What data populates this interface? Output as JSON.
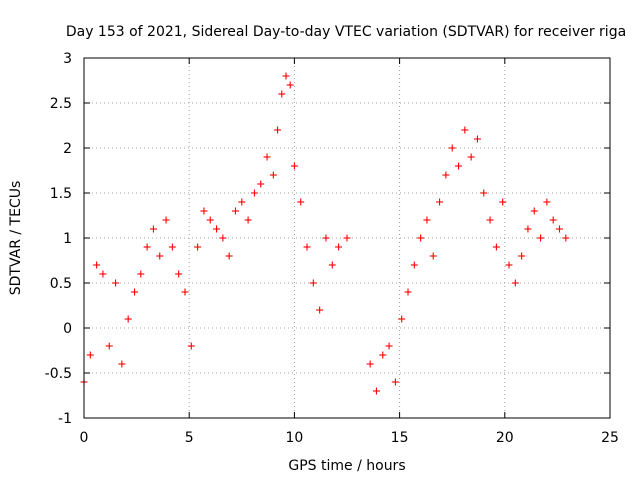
{
  "chart_data": {
    "type": "scatter",
    "title": "Day 153 of 2021, Sidereal Day-to-day VTEC variation (SDTVAR) for receiver riga",
    "xlabel": "GPS time / hours",
    "ylabel": "SDTVAR / TECUs",
    "xlim": [
      0,
      25
    ],
    "ylim": [
      -1,
      3
    ],
    "xticks": [
      "0",
      "5",
      "10",
      "15",
      "20",
      "25"
    ],
    "yticks": [
      "-1",
      "-0.5",
      "0",
      "0.5",
      "1",
      "1.5",
      "2",
      "2.5",
      "3"
    ],
    "grid": true,
    "marker": "+",
    "color": "#ff0000",
    "series": [
      {
        "name": "SDTVAR",
        "x": [
          0.0,
          0.3,
          0.6,
          0.9,
          1.2,
          1.5,
          1.8,
          2.1,
          2.4,
          2.7,
          3.0,
          3.3,
          3.6,
          3.9,
          4.2,
          4.5,
          4.8,
          5.1,
          5.4,
          5.7,
          6.0,
          6.3,
          6.6,
          6.9,
          7.2,
          7.5,
          7.8,
          8.1,
          8.4,
          8.7,
          9.0,
          9.2,
          9.4,
          9.6,
          9.8,
          10.0,
          10.3,
          10.6,
          10.9,
          11.2,
          11.5,
          11.8,
          12.1,
          12.5,
          13.6,
          13.9,
          14.2,
          14.5,
          14.8,
          15.1,
          15.4,
          15.7,
          16.0,
          16.3,
          16.6,
          16.9,
          17.2,
          17.5,
          17.8,
          18.1,
          18.4,
          18.7,
          19.0,
          19.3,
          19.6,
          19.9,
          20.2,
          20.5,
          20.8,
          21.1,
          21.4,
          21.7,
          22.0,
          22.3,
          22.6,
          22.9
        ],
        "y": [
          -0.6,
          -0.3,
          0.7,
          0.6,
          -0.2,
          0.5,
          -0.4,
          0.1,
          0.4,
          0.6,
          0.9,
          1.1,
          0.8,
          1.2,
          0.9,
          0.6,
          0.4,
          -0.2,
          0.9,
          1.3,
          1.2,
          1.1,
          1.0,
          0.8,
          1.3,
          1.4,
          1.2,
          1.5,
          1.6,
          1.9,
          1.7,
          2.2,
          2.6,
          2.8,
          2.7,
          1.8,
          1.4,
          0.9,
          0.5,
          0.2,
          1.0,
          0.7,
          0.9,
          1.0,
          -0.4,
          -0.7,
          -0.3,
          -0.2,
          -0.6,
          0.1,
          0.4,
          0.7,
          1.0,
          1.2,
          0.8,
          1.4,
          1.7,
          2.0,
          1.8,
          2.2,
          1.9,
          2.1,
          1.5,
          1.2,
          0.9,
          1.4,
          0.7,
          0.5,
          0.8,
          1.1,
          1.3,
          1.0,
          1.4,
          1.2,
          1.1,
          1.0
        ]
      }
    ]
  }
}
